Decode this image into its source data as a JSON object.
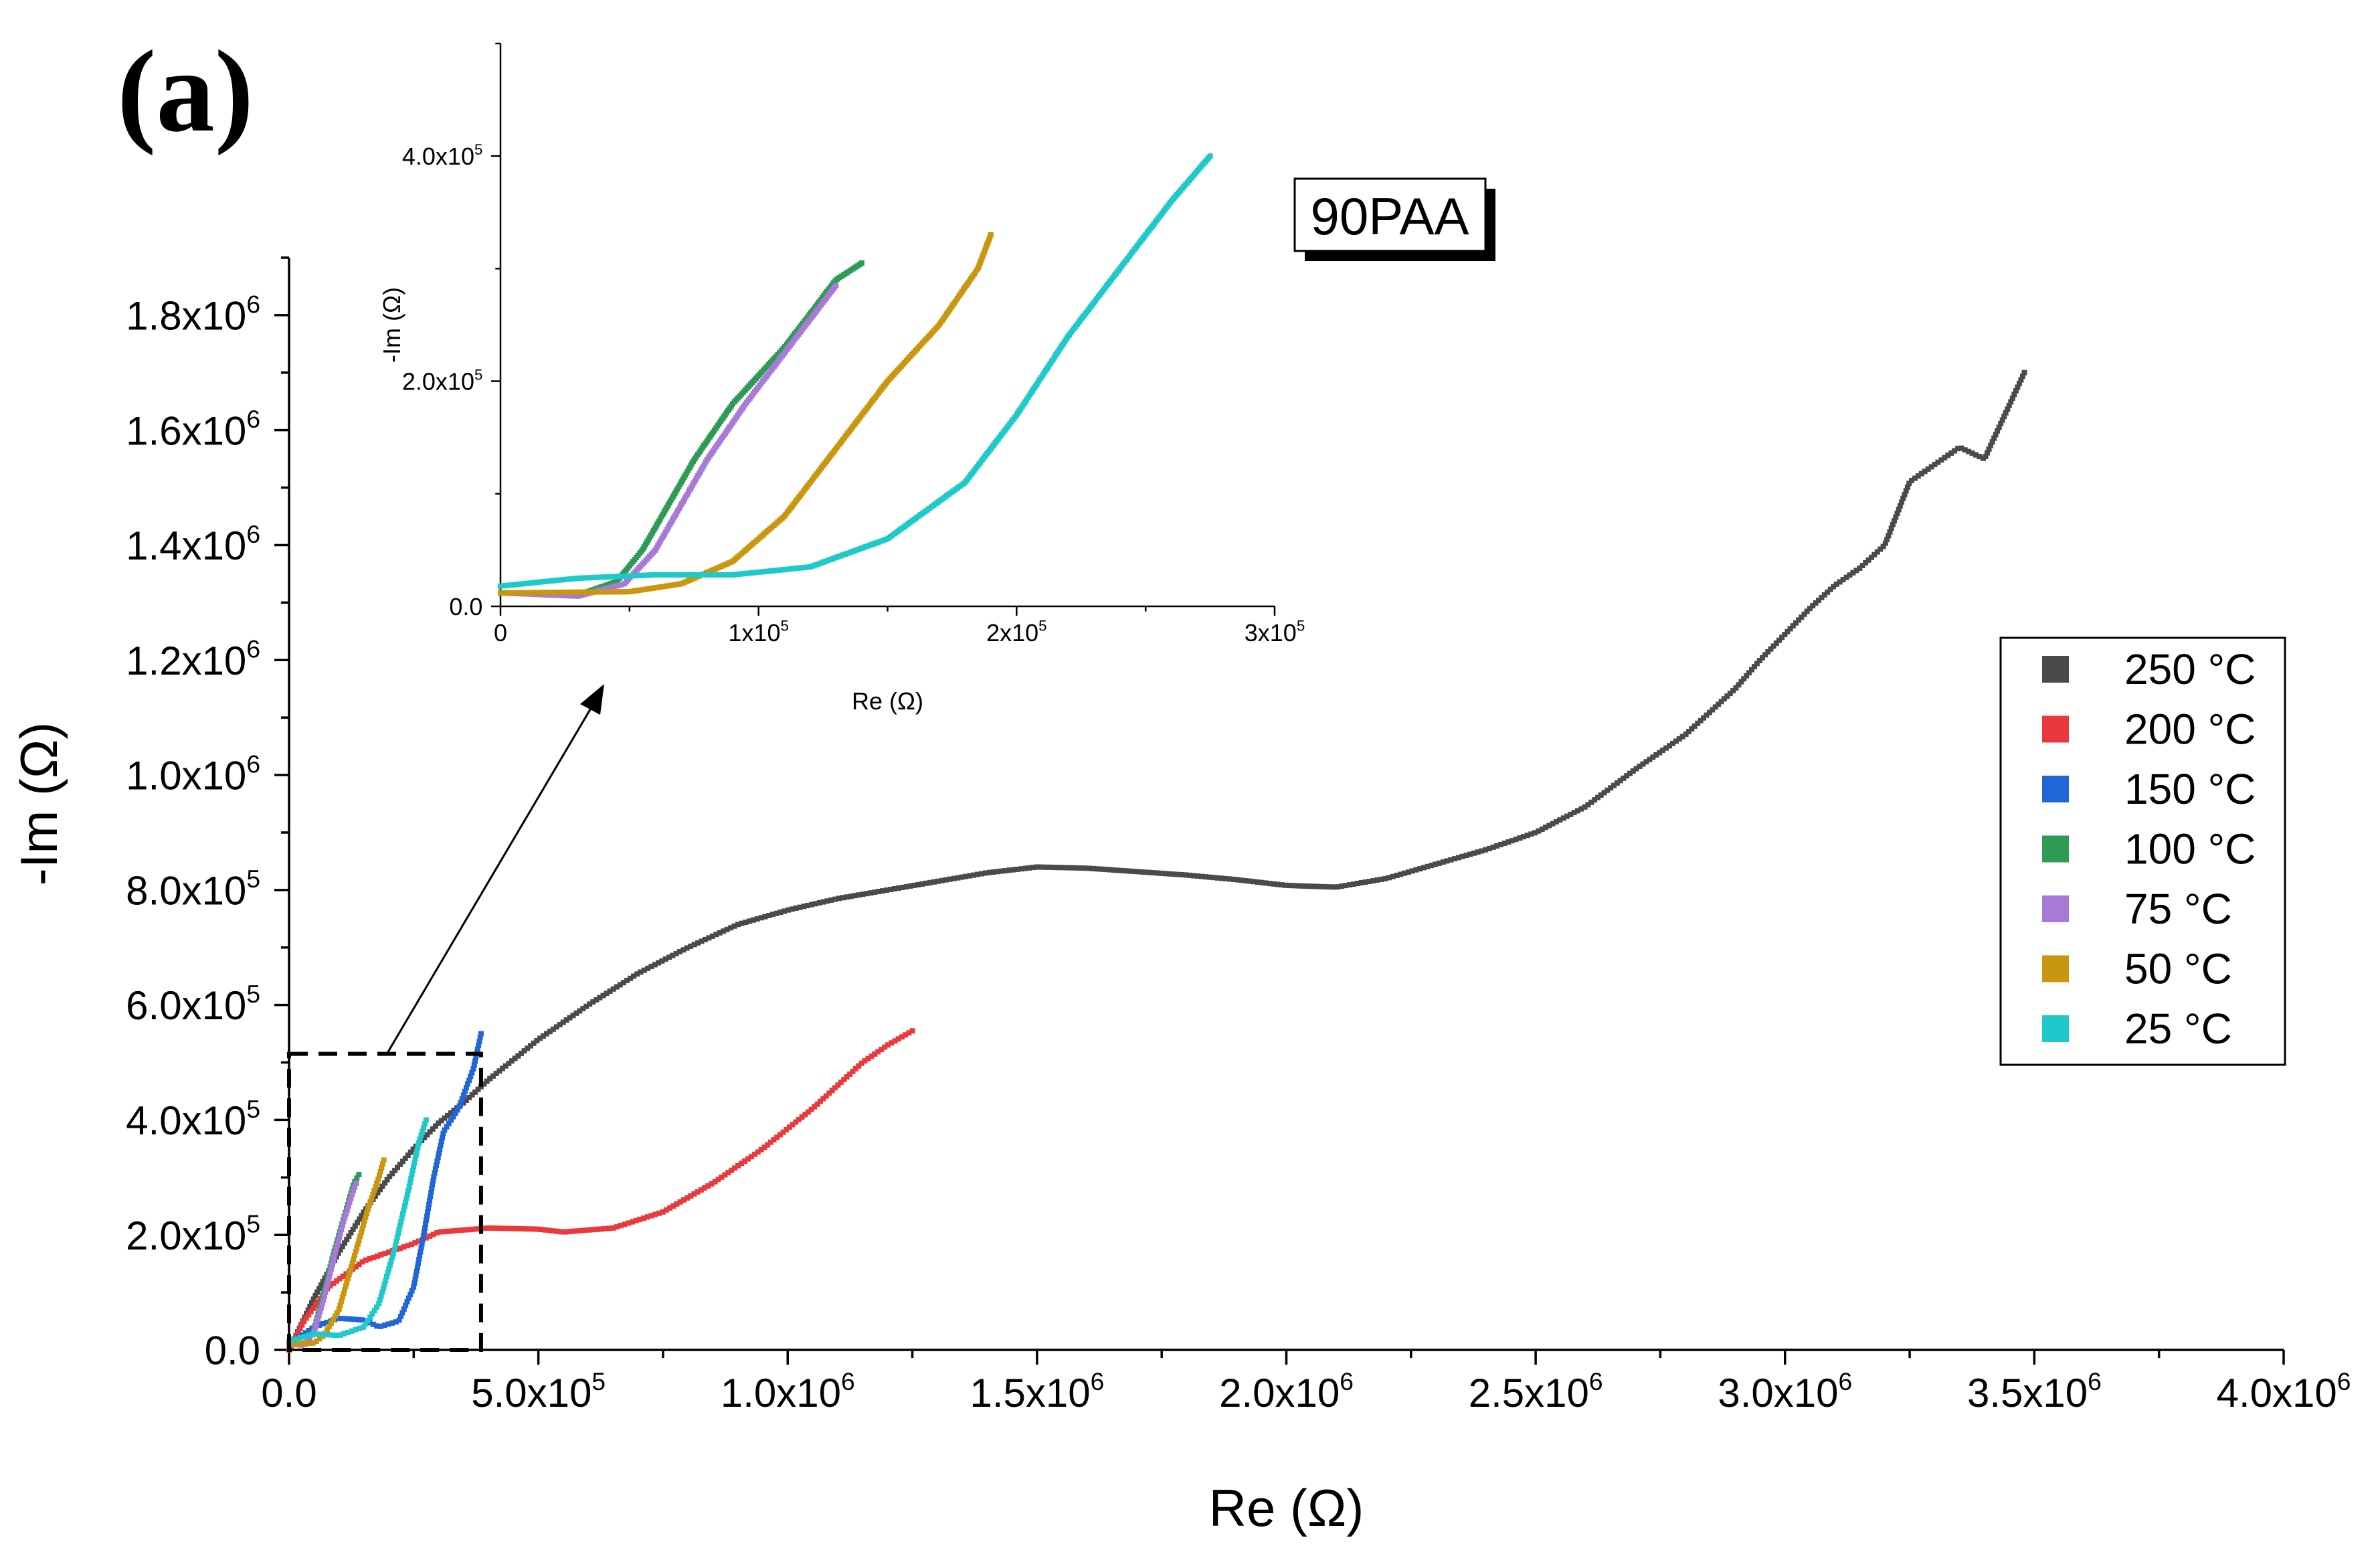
{
  "panel_label": "(a)",
  "sample_label": "90PAA",
  "colors": {
    "250": "#4a4a4a",
    "200": "#e8393c",
    "150": "#2166d6",
    "100": "#2f9a55",
    "75": "#a87ad8",
    "50": "#c9960f",
    "25": "#1fc9c9"
  },
  "chart_data": [
    {
      "id": "main",
      "type": "scatter",
      "xlabel": "Re (Ω)",
      "ylabel": "-Im (Ω)",
      "xlim": [
        0,
        4000000
      ],
      "ylim": [
        0,
        1900000
      ],
      "xticks": [
        {
          "v": 0,
          "mant": "0.0",
          "exp": ""
        },
        {
          "v": 500000,
          "mant": "5.0x10",
          "exp": "5"
        },
        {
          "v": 1000000,
          "mant": "1.0x10",
          "exp": "6"
        },
        {
          "v": 1500000,
          "mant": "1.5x10",
          "exp": "6"
        },
        {
          "v": 2000000,
          "mant": "2.0x10",
          "exp": "6"
        },
        {
          "v": 2500000,
          "mant": "2.5x10",
          "exp": "6"
        },
        {
          "v": 3000000,
          "mant": "3.0x10",
          "exp": "6"
        },
        {
          "v": 3500000,
          "mant": "3.5x10",
          "exp": "6"
        },
        {
          "v": 4000000,
          "mant": "4.0x10",
          "exp": "6"
        }
      ],
      "yticks": [
        {
          "v": 0,
          "mant": "0.0",
          "exp": ""
        },
        {
          "v": 200000,
          "mant": "2.0x10",
          "exp": "5"
        },
        {
          "v": 400000,
          "mant": "4.0x10",
          "exp": "5"
        },
        {
          "v": 600000,
          "mant": "6.0x10",
          "exp": "5"
        },
        {
          "v": 800000,
          "mant": "8.0x10",
          "exp": "5"
        },
        {
          "v": 1000000,
          "mant": "1.0x10",
          "exp": "6"
        },
        {
          "v": 1200000,
          "mant": "1.2x10",
          "exp": "6"
        },
        {
          "v": 1400000,
          "mant": "1.4x10",
          "exp": "6"
        },
        {
          "v": 1600000,
          "mant": "1.6x10",
          "exp": "6"
        },
        {
          "v": 1800000,
          "mant": "1.8x10",
          "exp": "6"
        }
      ],
      "zoom_box": {
        "x": [
          0,
          385000
        ],
        "y": [
          0,
          515000
        ]
      },
      "series": [
        {
          "name": "250 °C",
          "key": "250",
          "points": [
            [
              0,
              0
            ],
            [
              50000,
              90000
            ],
            [
              100000,
              170000
            ],
            [
              150000,
              240000
            ],
            [
              200000,
              300000
            ],
            [
              250000,
              350000
            ],
            [
              300000,
              395000
            ],
            [
              350000,
              430000
            ],
            [
              400000,
              470000
            ],
            [
              500000,
              540000
            ],
            [
              600000,
              600000
            ],
            [
              700000,
              655000
            ],
            [
              800000,
              700000
            ],
            [
              900000,
              740000
            ],
            [
              1000000,
              765000
            ],
            [
              1100000,
              785000
            ],
            [
              1200000,
              800000
            ],
            [
              1300000,
              815000
            ],
            [
              1400000,
              830000
            ],
            [
              1500000,
              840000
            ],
            [
              1600000,
              838000
            ],
            [
              1700000,
              832000
            ],
            [
              1800000,
              826000
            ],
            [
              1900000,
              818000
            ],
            [
              2000000,
              808000
            ],
            [
              2100000,
              805000
            ],
            [
              2200000,
              820000
            ],
            [
              2300000,
              845000
            ],
            [
              2400000,
              870000
            ],
            [
              2500000,
              900000
            ],
            [
              2600000,
              945000
            ],
            [
              2700000,
              1010000
            ],
            [
              2800000,
              1070000
            ],
            [
              2900000,
              1150000
            ],
            [
              2950000,
              1200000
            ],
            [
              3050000,
              1290000
            ],
            [
              3100000,
              1330000
            ],
            [
              3150000,
              1360000
            ],
            [
              3200000,
              1400000
            ],
            [
              3250000,
              1510000
            ],
            [
              3350000,
              1570000
            ],
            [
              3400000,
              1550000
            ],
            [
              3480000,
              1700000
            ]
          ]
        },
        {
          "name": "200 °C",
          "key": "200",
          "points": [
            [
              0,
              0
            ],
            [
              30000,
              50000
            ],
            [
              80000,
              110000
            ],
            [
              150000,
              155000
            ],
            [
              250000,
              185000
            ],
            [
              300000,
              205000
            ],
            [
              400000,
              212000
            ],
            [
              500000,
              210000
            ],
            [
              550000,
              205000
            ],
            [
              650000,
              212000
            ],
            [
              750000,
              240000
            ],
            [
              850000,
              290000
            ],
            [
              950000,
              350000
            ],
            [
              1000000,
              385000
            ],
            [
              1050000,
              420000
            ],
            [
              1100000,
              460000
            ],
            [
              1150000,
              500000
            ],
            [
              1200000,
              530000
            ],
            [
              1250000,
              555000
            ]
          ]
        },
        {
          "name": "150 °C",
          "key": "150",
          "points": [
            [
              0,
              10000
            ],
            [
              50000,
              40000
            ],
            [
              100000,
              55000
            ],
            [
              150000,
              52000
            ],
            [
              180000,
              40000
            ],
            [
              220000,
              50000
            ],
            [
              250000,
              110000
            ],
            [
              270000,
              200000
            ],
            [
              290000,
              300000
            ],
            [
              310000,
              380000
            ],
            [
              340000,
              420000
            ],
            [
              370000,
              490000
            ],
            [
              385000,
              550000
            ]
          ]
        },
        {
          "name": "100 °C",
          "key": "100",
          "points": [
            [
              0,
              10000
            ],
            [
              30000,
              10000
            ],
            [
              50000,
              35000
            ],
            [
              70000,
              100000
            ],
            [
              90000,
              170000
            ],
            [
              110000,
              230000
            ],
            [
              130000,
              290000
            ],
            [
              140000,
              305000
            ]
          ]
        },
        {
          "name": "75 °C",
          "key": "75",
          "points": [
            [
              0,
              10000
            ],
            [
              30000,
              8000
            ],
            [
              50000,
              30000
            ],
            [
              70000,
              90000
            ],
            [
              90000,
              160000
            ],
            [
              110000,
              225000
            ],
            [
              130000,
              280000
            ],
            [
              135000,
              290000
            ]
          ]
        },
        {
          "name": "50 °C",
          "key": "50",
          "points": [
            [
              0,
              10000
            ],
            [
              50000,
              12000
            ],
            [
              70000,
              25000
            ],
            [
              100000,
              70000
            ],
            [
              130000,
              160000
            ],
            [
              160000,
              250000
            ],
            [
              180000,
              300000
            ],
            [
              190000,
              330000
            ]
          ]
        },
        {
          "name": "25 °C",
          "key": "25",
          "points": [
            [
              0,
              15000
            ],
            [
              50000,
              28000
            ],
            [
              100000,
              25000
            ],
            [
              150000,
              40000
            ],
            [
              180000,
              80000
            ],
            [
              210000,
              170000
            ],
            [
              240000,
              280000
            ],
            [
              260000,
              360000
            ],
            [
              275000,
              400000
            ]
          ]
        }
      ]
    },
    {
      "id": "inset",
      "type": "scatter",
      "xlabel": "Re (Ω)",
      "ylabel": "-Im (Ω)",
      "xlim": [
        0,
        300000
      ],
      "ylim": [
        0,
        500000
      ],
      "xticks": [
        {
          "v": 0,
          "mant": "0",
          "exp": ""
        },
        {
          "v": 100000,
          "mant": "1x10",
          "exp": "5"
        },
        {
          "v": 200000,
          "mant": "2x10",
          "exp": "5"
        },
        {
          "v": 300000,
          "mant": "3x10",
          "exp": "5"
        }
      ],
      "yticks": [
        {
          "v": 0,
          "mant": "0.0",
          "exp": ""
        },
        {
          "v": 200000,
          "mant": "2.0x10",
          "exp": "5"
        },
        {
          "v": 400000,
          "mant": "4.0x10",
          "exp": "5"
        }
      ],
      "series": [
        {
          "name": "100 °C",
          "key": "100",
          "points": [
            [
              0,
              12000
            ],
            [
              30000,
              10000
            ],
            [
              45000,
              22000
            ],
            [
              55000,
              50000
            ],
            [
              65000,
              90000
            ],
            [
              75000,
              130000
            ],
            [
              90000,
              180000
            ],
            [
              110000,
              230000
            ],
            [
              130000,
              290000
            ],
            [
              140000,
              305000
            ]
          ]
        },
        {
          "name": "75 °C",
          "key": "75",
          "points": [
            [
              0,
              12000
            ],
            [
              30000,
              9000
            ],
            [
              48000,
              20000
            ],
            [
              60000,
              50000
            ],
            [
              70000,
              90000
            ],
            [
              80000,
              130000
            ],
            [
              95000,
              180000
            ],
            [
              115000,
              240000
            ],
            [
              130000,
              285000
            ]
          ]
        },
        {
          "name": "50 °C",
          "key": "50",
          "points": [
            [
              0,
              12000
            ],
            [
              50000,
              13000
            ],
            [
              70000,
              20000
            ],
            [
              90000,
              40000
            ],
            [
              110000,
              80000
            ],
            [
              130000,
              140000
            ],
            [
              150000,
              200000
            ],
            [
              170000,
              250000
            ],
            [
              185000,
              300000
            ],
            [
              190000,
              330000
            ]
          ]
        },
        {
          "name": "25 °C",
          "key": "25",
          "points": [
            [
              0,
              18000
            ],
            [
              30000,
              25000
            ],
            [
              60000,
              28000
            ],
            [
              90000,
              28000
            ],
            [
              120000,
              35000
            ],
            [
              150000,
              60000
            ],
            [
              180000,
              110000
            ],
            [
              200000,
              170000
            ],
            [
              220000,
              240000
            ],
            [
              240000,
              300000
            ],
            [
              260000,
              360000
            ],
            [
              275000,
              400000
            ]
          ]
        }
      ]
    }
  ],
  "legend": {
    "placement": "right",
    "entries": [
      {
        "label": "250 °C",
        "key": "250"
      },
      {
        "label": "200 °C",
        "key": "200"
      },
      {
        "label": "150 °C",
        "key": "150"
      },
      {
        "label": "100 °C",
        "key": "100"
      },
      {
        "label": "75 °C",
        "key": "75"
      },
      {
        "label": "50 °C",
        "key": "50"
      },
      {
        "label": "25 °C",
        "key": "25"
      }
    ]
  }
}
